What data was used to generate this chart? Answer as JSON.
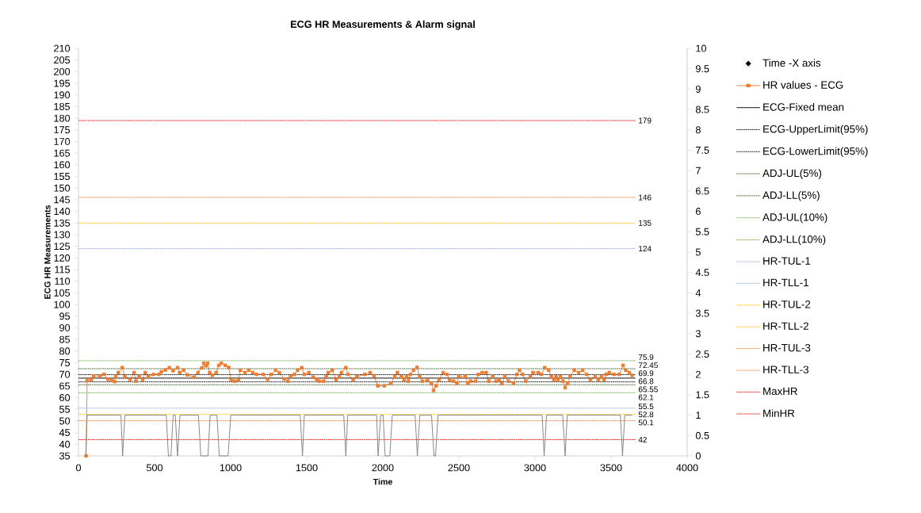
{
  "chart_data": {
    "type": "line",
    "title": "ECG HR Measurements & Alarm signal",
    "xlabel": "Time",
    "ylabel": "ECG HR Measurements",
    "xlim": [
      0,
      4000
    ],
    "xticks": [
      0,
      500,
      1000,
      1500,
      2000,
      2500,
      3000,
      3500,
      4000
    ],
    "ylim": [
      35,
      210
    ],
    "yticks": [
      35,
      40,
      45,
      50,
      55,
      60,
      65,
      70,
      75,
      80,
      85,
      90,
      95,
      100,
      105,
      110,
      115,
      120,
      125,
      130,
      135,
      140,
      145,
      150,
      155,
      160,
      165,
      170,
      175,
      180,
      185,
      190,
      195,
      200,
      205,
      210
    ],
    "y2lim": [
      0,
      10
    ],
    "y2ticks": [
      0,
      0.5,
      1,
      1.5,
      2,
      2.5,
      3,
      3.5,
      4,
      4.5,
      5,
      5.5,
      6,
      6.5,
      7,
      7.5,
      8,
      8.5,
      9,
      9.5,
      10
    ],
    "legend": "right",
    "grid": false,
    "series": [
      {
        "name": "Time -X axis",
        "type": "scatter",
        "color": "#000000",
        "marker": "diamond"
      },
      {
        "name": "HR values - ECG",
        "type": "line",
        "color": "#ed7d31",
        "marker": "square",
        "line_style": "solid",
        "x": [
          50,
          57,
          84,
          99,
          142,
          168,
          194,
          219,
          237,
          245,
          262,
          288,
          305,
          339,
          365,
          377,
          399,
          422,
          439,
          459,
          494,
          528,
          545,
          571,
          597,
          622,
          651,
          665,
          691,
          716,
          759,
          785,
          811,
          823,
          837,
          849,
          862,
          879,
          905,
          922,
          939,
          965,
          987,
          1003,
          1025,
          1051,
          1063,
          1094,
          1119,
          1145,
          1171,
          1214,
          1243,
          1268,
          1296,
          1320,
          1351,
          1376,
          1394,
          1419,
          1440,
          1467,
          1484,
          1514,
          1543,
          1565,
          1582,
          1611,
          1628,
          1642,
          1668,
          1693,
          1714,
          1728,
          1757,
          1771,
          1805,
          1830,
          1882,
          1916,
          1942,
          1967,
          2010,
          2053,
          2079,
          2096,
          2122,
          2139,
          2156,
          2168,
          2182,
          2202,
          2225,
          2242,
          2259,
          2293,
          2319,
          2333,
          2350,
          2370,
          2396,
          2422,
          2439,
          2465,
          2487,
          2499,
          2542,
          2559,
          2576,
          2610,
          2627,
          2653,
          2679,
          2696,
          2722,
          2744,
          2765,
          2782,
          2802,
          2825,
          2859,
          2881,
          2898,
          2919,
          2939,
          2970,
          2987,
          3022,
          3042,
          3064,
          3090,
          3107,
          3124,
          3138,
          3150,
          3167,
          3184,
          3198,
          3214,
          3231,
          3258,
          3287,
          3313,
          3339,
          3364,
          3395,
          3416,
          3436,
          3454,
          3467,
          3488,
          3519,
          3553,
          3579,
          3596,
          3620,
          3638
        ],
        "values": [
          35,
          67.4,
          67.7,
          69.3,
          69.3,
          70,
          67.9,
          67.4,
          66.9,
          69.1,
          70.8,
          72.9,
          69,
          67.7,
          70.8,
          67.1,
          69.1,
          67.7,
          70.8,
          69,
          70,
          70,
          71.1,
          71.9,
          72.9,
          71.6,
          72.9,
          70.8,
          71.8,
          69.8,
          68.8,
          70.8,
          72.8,
          74.8,
          73.7,
          74.8,
          70.8,
          69.6,
          70.8,
          73.9,
          74.8,
          73.9,
          73,
          67.7,
          67.1,
          67.7,
          71.8,
          70.8,
          71.8,
          70.8,
          70,
          70,
          67.9,
          70,
          71.8,
          70.8,
          68,
          67.1,
          69.1,
          70,
          71.8,
          72.9,
          70,
          70.8,
          68.8,
          67.9,
          67.1,
          67.1,
          69,
          70.8,
          71.8,
          67.7,
          69,
          70.8,
          72.9,
          70,
          67.7,
          69.1,
          70,
          70.8,
          69.4,
          65.1,
          65.1,
          66.2,
          69.1,
          70.8,
          69,
          67.7,
          69,
          67.1,
          70,
          71.8,
          73,
          69.1,
          67.1,
          67.7,
          66.2,
          63.1,
          65.1,
          67.7,
          70.8,
          70,
          67.7,
          67.1,
          66.2,
          69.1,
          69.1,
          66.2,
          67.1,
          67.1,
          70,
          70.8,
          70.8,
          67.1,
          69.1,
          67.1,
          67.7,
          66,
          69.1,
          67.1,
          66.2,
          70,
          71.8,
          70,
          67.1,
          69.1,
          70.8,
          70.8,
          70,
          72.9,
          71.8,
          69,
          67.7,
          69,
          67.7,
          69,
          67.1,
          64.3,
          66.2,
          69.1,
          71.8,
          70.8,
          71.8,
          70,
          67.7,
          69,
          67.7,
          69,
          67.7,
          70,
          70.8,
          70,
          70,
          73.9,
          71.8,
          70.8,
          69.6
        ]
      },
      {
        "name": "ECG-Fixed mean",
        "type": "line",
        "color": "#000000",
        "marker": "none",
        "line_style": "solid",
        "x": [
          0,
          3660
        ],
        "values": [
          68.4,
          68.4
        ]
      },
      {
        "name": "ECG-UpperLimit(95%)",
        "type": "line",
        "color": "#000000",
        "marker": "none",
        "line_style": "dotted",
        "x": [
          0,
          3660
        ],
        "values": [
          69.9,
          69.9
        ],
        "value_labels": [
          null,
          "69.9"
        ]
      },
      {
        "name": "ECG-LowerLimit(95%)",
        "type": "line",
        "color": "#000000",
        "marker": "none",
        "line_style": "dotted",
        "x": [
          0,
          3660
        ],
        "values": [
          66.8,
          66.8
        ],
        "value_labels": [
          null,
          "66.8"
        ]
      },
      {
        "name": "ADJ-UL(5%)",
        "type": "line",
        "color": "#375623",
        "marker": "none",
        "line_style": "dotted",
        "x": [
          0,
          3660
        ],
        "values": [
          72.45,
          72.45
        ],
        "value_labels": [
          null,
          "72.45"
        ]
      },
      {
        "name": "ADJ-LL(5%)",
        "type": "line",
        "color": "#375623",
        "marker": "none",
        "line_style": "dotted",
        "x": [
          0,
          3660
        ],
        "values": [
          65.55,
          65.55
        ],
        "value_labels": [
          null,
          "65.55"
        ]
      },
      {
        "name": "ADJ-UL(10%)",
        "type": "line",
        "color": "#70ad47",
        "marker": "none",
        "line_style": "dotted",
        "x": [
          0,
          3660
        ],
        "values": [
          75.9,
          75.9
        ],
        "value_labels": [
          null,
          "75.9"
        ]
      },
      {
        "name": "ADJ-LL(10%)",
        "type": "line",
        "color": "#70ad47",
        "marker": "none",
        "line_style": "dotted",
        "x": [
          0,
          3660
        ],
        "values": [
          62.1,
          62.1
        ],
        "value_labels": [
          null,
          "62.1"
        ]
      },
      {
        "name": "HR-TUL-1",
        "type": "line",
        "color": "#8faadc",
        "marker": "none",
        "line_style": "dotted",
        "x": [
          0,
          3660
        ],
        "values": [
          124,
          124
        ],
        "value_labels": [
          null,
          "124"
        ]
      },
      {
        "name": "HR-TLL-1",
        "type": "line",
        "color": "#8faadc",
        "marker": "none",
        "line_style": "dotted",
        "x": [
          0,
          3660
        ],
        "values": [
          55.5,
          55.5
        ],
        "value_labels": [
          null,
          "55.5"
        ]
      },
      {
        "name": "HR-TUL-2",
        "type": "line",
        "color": "#ffc000",
        "marker": "none",
        "line_style": "dotted",
        "x": [
          0,
          3660
        ],
        "values": [
          135,
          135
        ],
        "value_labels": [
          null,
          "135"
        ]
      },
      {
        "name": "HR-TLL-2",
        "type": "line",
        "color": "#ffc000",
        "marker": "none",
        "line_style": "dotted",
        "x": [
          0,
          3660
        ],
        "values": [
          52.8,
          52.8
        ],
        "value_labels": [
          null,
          "52.8"
        ]
      },
      {
        "name": "HR-TUL-3",
        "type": "line",
        "color": "#ed7d31",
        "marker": "none",
        "line_style": "dotted",
        "x": [
          0,
          3660
        ],
        "values": [
          146,
          146
        ],
        "value_labels": [
          null,
          "146"
        ]
      },
      {
        "name": "HR-TLL-3",
        "type": "line",
        "color": "#ed7d31",
        "marker": "none",
        "line_style": "dotted",
        "x": [
          0,
          3660
        ],
        "values": [
          50.1,
          50.1
        ],
        "value_labels": [
          null,
          "50.1"
        ]
      },
      {
        "name": "MaxHR",
        "type": "line",
        "color": "#ff0000",
        "marker": "none",
        "line_style": "dotted",
        "x": [
          0,
          3660
        ],
        "values": [
          179,
          179
        ],
        "value_labels": [
          null,
          "179"
        ]
      },
      {
        "name": "MinHR",
        "type": "line",
        "color": "#ff0000",
        "marker": "none",
        "line_style": "dotted",
        "x": [
          0,
          3660
        ],
        "values": [
          42,
          42
        ],
        "value_labels": [
          null,
          "42"
        ]
      },
      {
        "type": "line",
        "axis": "y2",
        "color": "#808080",
        "marker": "none",
        "line_style": "solid",
        "x": [
          48,
          57,
          279,
          290,
          305,
          577,
          591,
          608,
          622,
          636,
          651,
          667,
          788,
          804,
          851,
          865,
          910,
          925,
          983,
          1001,
          1457,
          1472,
          1484,
          1743,
          1757,
          1769,
          1959,
          1969,
          1986,
          2002,
          2015,
          2046,
          2062,
          2212,
          2227,
          2243,
          2320,
          2336,
          2346,
          2363,
          3047,
          3060,
          3076,
          3182,
          3198,
          3212,
          3561,
          3575,
          3590,
          3638
        ],
        "values": [
          0,
          1,
          1,
          0,
          1,
          1,
          0,
          0,
          1,
          1,
          0,
          1,
          1,
          0,
          0,
          1,
          1,
          0,
          0,
          1,
          1,
          0,
          1,
          1,
          0,
          1,
          1,
          0,
          1,
          1,
          0,
          0,
          1,
          1,
          0,
          1,
          1,
          0,
          0,
          1,
          1,
          0,
          1,
          1,
          0,
          1,
          1,
          0,
          1,
          1
        ]
      }
    ]
  }
}
